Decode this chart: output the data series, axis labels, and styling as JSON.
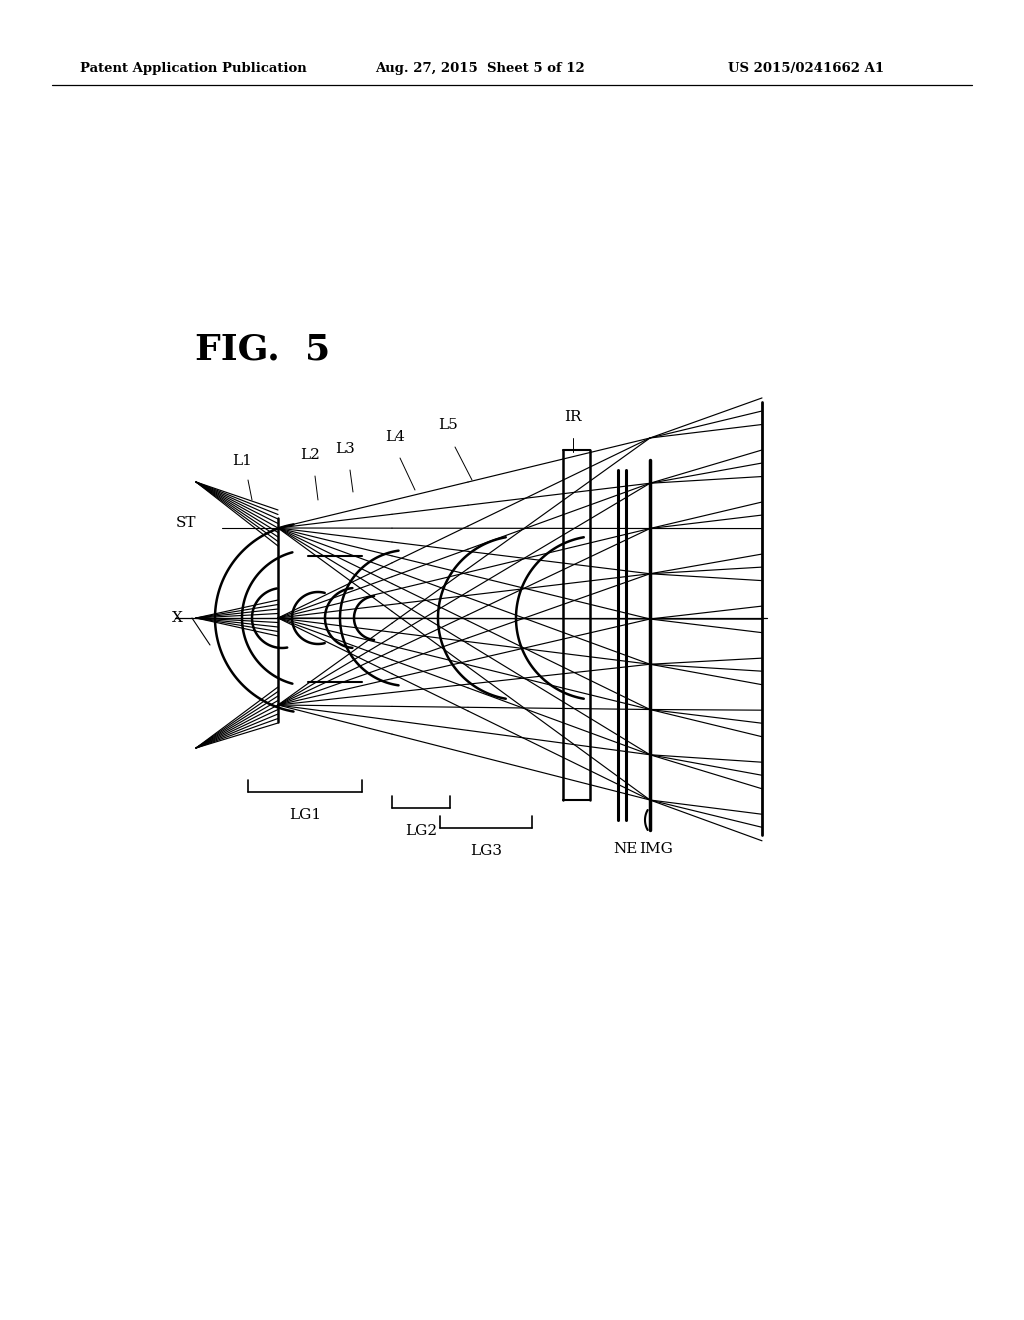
{
  "header_left": "Patent Application Publication",
  "header_mid": "Aug. 27, 2015  Sheet 5 of 12",
  "header_right": "US 2015/0241662 A1",
  "fig_title": "FIG.  5",
  "bg_color": "#ffffff"
}
